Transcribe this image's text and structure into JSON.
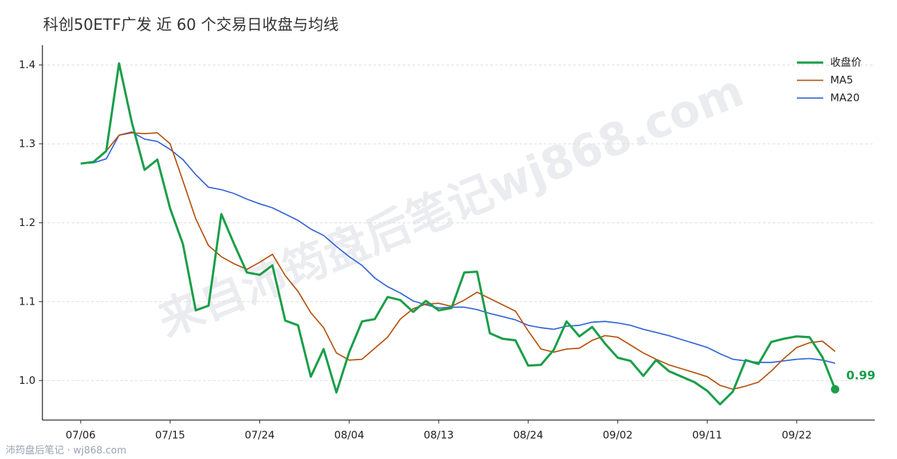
{
  "chart_data": {
    "type": "line",
    "title": "科创50ETF广发 近 60 个交易日收盘与均线",
    "watermark": "来自沛筠盘后笔记wj868.com",
    "footer": "沛筠盘后笔记 · wj868.com",
    "categories": [
      "07/06",
      null,
      null,
      null,
      null,
      null,
      null,
      "07/15",
      null,
      null,
      null,
      null,
      null,
      null,
      "07/24",
      null,
      null,
      null,
      null,
      null,
      null,
      "08/04",
      null,
      null,
      null,
      null,
      null,
      null,
      "08/13",
      null,
      null,
      null,
      null,
      null,
      null,
      "08/24",
      null,
      null,
      null,
      null,
      null,
      null,
      "09/02",
      null,
      null,
      null,
      null,
      null,
      null,
      "09/11",
      null,
      null,
      null,
      null,
      null,
      null,
      "09/22",
      null,
      null,
      null
    ],
    "series": [
      {
        "name": "收盘价",
        "color": "#1a9e48",
        "values": [
          1.275,
          1.277,
          1.291,
          1.402,
          1.327,
          1.267,
          1.28,
          1.218,
          1.173,
          1.089,
          1.095,
          1.211,
          1.173,
          1.137,
          1.134,
          1.146,
          1.076,
          1.07,
          1.005,
          1.04,
          0.985,
          1.036,
          1.075,
          1.078,
          1.106,
          1.102,
          1.087,
          1.101,
          1.089,
          1.092,
          1.137,
          1.138,
          1.06,
          1.053,
          1.051,
          1.019,
          1.02,
          1.039,
          1.075,
          1.056,
          1.068,
          1.047,
          1.029,
          1.025,
          1.006,
          1.026,
          1.012,
          1.005,
          0.998,
          0.987,
          0.97,
          0.986,
          1.026,
          1.021,
          1.049,
          1.053,
          1.056,
          1.055,
          1.03,
          0.989
        ],
        "value_labels": [
          null,
          null,
          null,
          null,
          null,
          null,
          null,
          null,
          null,
          null,
          null,
          null,
          null,
          null,
          null,
          null,
          null,
          null,
          null,
          null,
          null,
          null,
          null,
          null,
          null,
          null,
          null,
          null,
          null,
          null,
          null,
          null,
          null,
          null,
          null,
          null,
          null,
          null,
          null,
          null,
          null,
          null,
          null,
          null,
          null,
          null,
          null,
          null,
          null,
          null,
          null,
          null,
          null,
          null,
          null,
          null,
          null,
          null,
          null,
          "0.99"
        ]
      },
      {
        "name": "MA5",
        "color": "#b5530f",
        "values": [
          1.275,
          1.277,
          1.291,
          1.311,
          1.314,
          1.313,
          1.314,
          1.3,
          1.253,
          1.205,
          1.171,
          1.157,
          1.148,
          1.141,
          1.15,
          1.16,
          1.133,
          1.113,
          1.086,
          1.067,
          1.035,
          1.026,
          1.027,
          1.041,
          1.055,
          1.078,
          1.091,
          1.097,
          1.098,
          1.094,
          1.102,
          1.112,
          1.104,
          1.096,
          1.088,
          1.063,
          1.04,
          1.036,
          1.04,
          1.041,
          1.051,
          1.057,
          1.055,
          1.045,
          1.035,
          1.027,
          1.02,
          1.015,
          1.01,
          1.005,
          0.994,
          0.989,
          0.993,
          0.998,
          1.012,
          1.028,
          1.042,
          1.048,
          1.05,
          1.037
        ]
      },
      {
        "name": "MA20",
        "color": "#3366d6",
        "values": [
          1.275,
          1.276,
          1.281,
          1.311,
          1.315,
          1.306,
          1.303,
          1.293,
          1.28,
          1.261,
          1.245,
          1.242,
          1.237,
          1.23,
          1.224,
          1.219,
          1.211,
          1.203,
          1.192,
          1.184,
          1.17,
          1.157,
          1.146,
          1.13,
          1.119,
          1.111,
          1.101,
          1.096,
          1.092,
          1.093,
          1.093,
          1.09,
          1.085,
          1.081,
          1.077,
          1.07,
          1.067,
          1.065,
          1.069,
          1.07,
          1.074,
          1.075,
          1.073,
          1.07,
          1.065,
          1.061,
          1.057,
          1.052,
          1.047,
          1.042,
          1.034,
          1.027,
          1.025,
          1.023,
          1.023,
          1.025,
          1.027,
          1.028,
          1.026,
          1.022
        ]
      }
    ],
    "ylim": [
      0.95,
      1.425
    ],
    "yticks": [
      {
        "value": 1,
        "label": "1.0"
      },
      1.1,
      1.2,
      1.3,
      1.4
    ],
    "grid": true,
    "legend": "upper right"
  }
}
